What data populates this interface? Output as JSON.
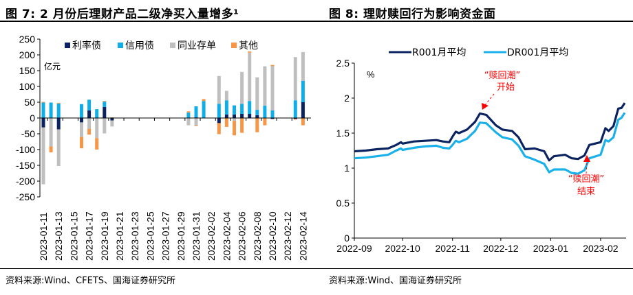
{
  "panels": {
    "left": {
      "title": "图 7:  2 月份后理财产品二级净买入量增多¹",
      "source": "资料来源:Wind、CFETS、国海证券研究所"
    },
    "right": {
      "title": "图 8:  理财赎回行为影响资金面",
      "source": "资料来源:Wind、国海证券研究所"
    }
  },
  "colors": {
    "rate_bond": "#0b2361",
    "credit_bond": "#10aee9",
    "ncd": "#bfbfbf",
    "other": "#f79646",
    "r001": "#0b2361",
    "dr001": "#1ab0ea",
    "annotation": "#ff0000"
  },
  "chart_data": [
    {
      "type": "bar",
      "stacked": true,
      "unit_label": "亿元",
      "ylim": [
        -250,
        250
      ],
      "yticks": [
        250,
        200,
        150,
        100,
        50,
        0,
        -50,
        -100,
        -150,
        -200,
        -250
      ],
      "legend_position": "top",
      "categories": [
        "2023-01-11",
        "2023-01-12",
        "2023-01-13",
        "2023-01-14",
        "2023-01-15",
        "2023-01-16",
        "2023-01-17",
        "2023-01-18",
        "2023-01-19",
        "2023-01-20",
        "2023-01-21",
        "2023-01-22",
        "2023-01-23",
        "2023-01-24",
        "2023-01-25",
        "2023-01-26",
        "2023-01-27",
        "2023-01-28",
        "2023-01-29",
        "2023-01-30",
        "2023-01-31",
        "2023-02-01",
        "2023-02-02",
        "2023-02-03",
        "2023-02-04",
        "2023-02-05",
        "2023-02-06",
        "2023-02-07",
        "2023-02-08",
        "2023-02-09",
        "2023-02-10",
        "2023-02-11",
        "2023-02-12",
        "2023-02-13",
        "2023-02-14"
      ],
      "xtick_labels": [
        "2023-01-11",
        "2023-01-13",
        "2023-01-15",
        "2023-01-17",
        "2023-01-19",
        "2023-01-21",
        "2023-01-23",
        "2023-01-25",
        "2023-01-27",
        "2023-01-29",
        "2023-01-31",
        "2023-02-02",
        "2023-02-04",
        "2023-02-06",
        "2023-02-08",
        "2023-02-10",
        "2023-02-12",
        "2023-02-14"
      ],
      "series": [
        {
          "name": "利率债",
          "color_key": "rate_bond",
          "values": [
            -30,
            0,
            -36,
            0,
            0,
            -14,
            24,
            0,
            35,
            -8,
            0,
            0,
            0,
            0,
            0,
            0,
            0,
            0,
            0,
            0,
            2,
            0,
            0,
            -16,
            11,
            11,
            13,
            13,
            9,
            0,
            -3,
            0,
            0,
            -3,
            50
          ]
        },
        {
          "name": "信用债",
          "color_key": "credit_bond",
          "values": [
            49,
            49,
            46,
            0,
            0,
            44,
            34,
            28,
            17,
            0,
            0,
            0,
            0,
            0,
            0,
            0,
            0,
            0,
            0,
            17,
            35,
            54,
            0,
            45,
            45,
            29,
            32,
            41,
            17,
            39,
            24,
            0,
            0,
            56,
            68
          ]
        },
        {
          "name": "同业存单",
          "color_key": "ncd",
          "values": [
            -180,
            -90,
            -116,
            0,
            0,
            -46,
            -34,
            -64,
            -49,
            -19,
            0,
            0,
            0,
            0,
            0,
            0,
            0,
            0,
            0,
            -23,
            -24,
            0,
            0,
            88,
            30,
            -9,
            101,
            153,
            103,
            125,
            140,
            0,
            0,
            137,
            91
          ]
        },
        {
          "name": "其他",
          "color_key": "other",
          "values": [
            2,
            -19,
            2,
            0,
            0,
            -36,
            -19,
            -36,
            2,
            2,
            0,
            0,
            0,
            0,
            0,
            0,
            0,
            0,
            0,
            4,
            -2,
            6,
            0,
            -35,
            -28,
            -46,
            -47,
            4,
            -45,
            -23,
            4,
            0,
            0,
            -2,
            -23
          ]
        }
      ]
    },
    {
      "type": "line",
      "ylabel": "%",
      "ylim": [
        0,
        2.5
      ],
      "yticks": [
        0,
        0.5,
        1,
        1.5,
        2,
        2.5
      ],
      "xtick_labels": [
        "2022-09",
        "2022-10",
        "2022-11",
        "2022-12",
        "2023-01",
        "2023-02"
      ],
      "x_range": [
        "2022-09-01",
        "2023-02-16"
      ],
      "legend_position": "top",
      "series": [
        {
          "name": "R001月平均",
          "color_key": "r001",
          "x": [
            "2022-09-01",
            "2022-09-08",
            "2022-09-15",
            "2022-09-22",
            "2022-09-27",
            "2022-09-30",
            "2022-10-01",
            "2022-10-08",
            "2022-10-15",
            "2022-10-22",
            "2022-10-26",
            "2022-10-30",
            "2022-11-01",
            "2022-11-03",
            "2022-11-05",
            "2022-11-10",
            "2022-11-15",
            "2022-11-18",
            "2022-11-22",
            "2022-11-28",
            "2022-12-02",
            "2022-12-08",
            "2022-12-12",
            "2022-12-16",
            "2022-12-22",
            "2022-12-28",
            "2022-12-31",
            "2023-01-03",
            "2023-01-10",
            "2023-01-14",
            "2023-01-18",
            "2023-01-22",
            "2023-01-25",
            "2023-02-01",
            "2023-02-04",
            "2023-02-06",
            "2023-02-09",
            "2023-02-12",
            "2023-02-14",
            "2023-02-16"
          ],
          "values": [
            1.24,
            1.25,
            1.27,
            1.28,
            1.33,
            1.37,
            1.35,
            1.38,
            1.39,
            1.4,
            1.38,
            1.37,
            1.45,
            1.52,
            1.5,
            1.55,
            1.66,
            1.78,
            1.76,
            1.61,
            1.55,
            1.53,
            1.44,
            1.27,
            1.28,
            1.24,
            1.11,
            1.17,
            1.19,
            1.14,
            1.13,
            1.18,
            1.33,
            1.37,
            1.57,
            1.53,
            1.6,
            1.85,
            1.86,
            1.93
          ]
        },
        {
          "name": "DR001月平均",
          "color_key": "dr001",
          "x": [
            "2022-09-01",
            "2022-09-08",
            "2022-09-15",
            "2022-09-22",
            "2022-09-27",
            "2022-09-30",
            "2022-10-01",
            "2022-10-08",
            "2022-10-15",
            "2022-10-22",
            "2022-10-26",
            "2022-10-30",
            "2022-11-01",
            "2022-11-03",
            "2022-11-05",
            "2022-11-10",
            "2022-11-15",
            "2022-11-18",
            "2022-11-22",
            "2022-11-28",
            "2022-12-02",
            "2022-12-08",
            "2022-12-12",
            "2022-12-16",
            "2022-12-22",
            "2022-12-28",
            "2022-12-31",
            "2023-01-03",
            "2023-01-10",
            "2023-01-14",
            "2023-01-18",
            "2023-01-22",
            "2023-01-25",
            "2023-02-01",
            "2023-02-04",
            "2023-02-06",
            "2023-02-09",
            "2023-02-12",
            "2023-02-14",
            "2023-02-16"
          ],
          "values": [
            1.14,
            1.15,
            1.17,
            1.19,
            1.25,
            1.28,
            1.26,
            1.29,
            1.31,
            1.32,
            1.29,
            1.28,
            1.33,
            1.39,
            1.37,
            1.42,
            1.53,
            1.65,
            1.64,
            1.51,
            1.44,
            1.41,
            1.32,
            1.17,
            1.12,
            1.06,
            0.94,
            0.98,
            0.98,
            0.93,
            0.92,
            0.97,
            1.14,
            1.19,
            1.4,
            1.38,
            1.44,
            1.69,
            1.72,
            1.79
          ]
        }
      ],
      "annotations": [
        {
          "text_line1": "“赎回潮”",
          "text_line2": "开始",
          "points_to": "2022-11-18"
        },
        {
          "text_line1": "“赎回潮”",
          "text_line2": "结束",
          "points_to": "2023-01-23"
        }
      ]
    }
  ]
}
